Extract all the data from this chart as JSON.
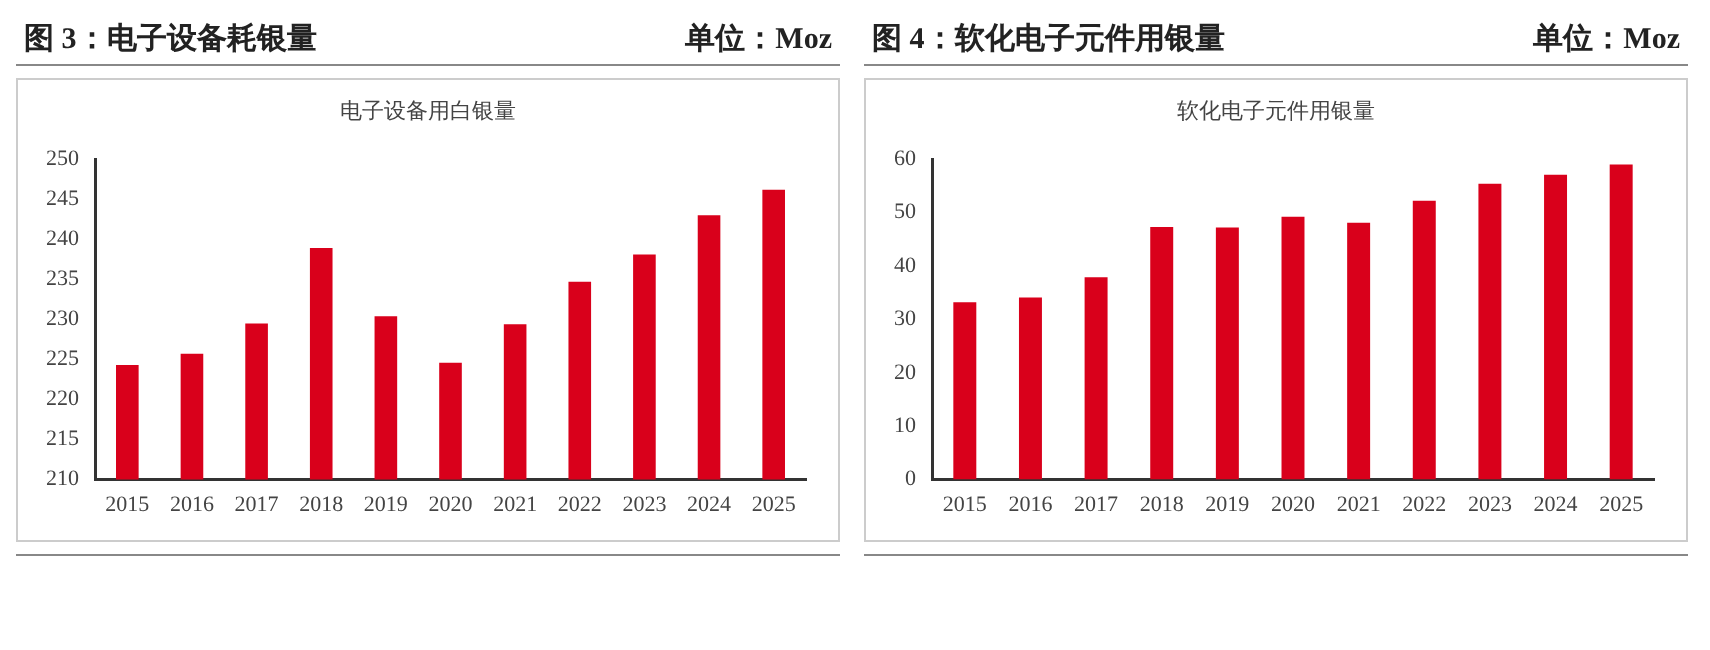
{
  "chart_data": [
    {
      "type": "bar",
      "title": "图 3：电子设备耗银量",
      "subtitle": "电子设备用白银量",
      "annotations": [
        "单位：Moz"
      ],
      "categories": [
        "2015",
        "2016",
        "2017",
        "2018",
        "2019",
        "2020",
        "2021",
        "2022",
        "2023",
        "2024",
        "2025"
      ],
      "values": [
        224.3,
        225.7,
        229.5,
        238.9,
        230.4,
        224.6,
        229.4,
        234.7,
        238.1,
        243.0,
        246.2
      ],
      "color": "#d9001b",
      "ylim": [
        210,
        250
      ],
      "yticks": [
        210,
        215,
        220,
        225,
        230,
        235,
        240,
        245,
        250
      ],
      "grid": false,
      "legend": false
    },
    {
      "type": "bar",
      "title": "图 4：软化电子元件用银量",
      "subtitle": "软化电子元件用银量",
      "annotations": [
        "单位：Moz"
      ],
      "categories": [
        "2015",
        "2016",
        "2017",
        "2018",
        "2019",
        "2020",
        "2021",
        "2022",
        "2023",
        "2024",
        "2025"
      ],
      "values": [
        33.2,
        34.1,
        37.9,
        47.3,
        47.2,
        49.2,
        48.1,
        52.2,
        55.4,
        57.1,
        59.0
      ],
      "color": "#d9001b",
      "ylim": [
        0,
        60
      ],
      "yticks": [
        0,
        10,
        20,
        30,
        40,
        50,
        60
      ],
      "grid": false,
      "legend": false
    }
  ]
}
